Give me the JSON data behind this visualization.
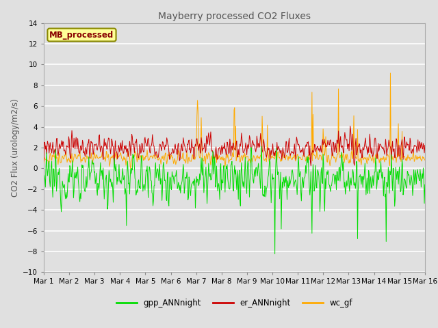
{
  "title": "Mayberry processed CO2 Fluxes",
  "ylabel": "CO2 Flux (urology/m2/s)",
  "legend_label": "MB_processed",
  "series": [
    "gpp_ANNnight",
    "er_ANNnight",
    "wc_gf"
  ],
  "colors": [
    "#00dd00",
    "#cc0000",
    "#ffaa00"
  ],
  "ylim": [
    -10,
    14
  ],
  "yticks": [
    -10,
    -8,
    -6,
    -4,
    -2,
    0,
    2,
    4,
    6,
    8,
    10,
    12,
    14
  ],
  "n_points": 720,
  "x_start": 0,
  "x_end": 15,
  "xtick_positions": [
    0,
    1,
    2,
    3,
    4,
    5,
    6,
    7,
    8,
    9,
    10,
    11,
    12,
    13,
    14,
    15
  ],
  "xtick_labels": [
    "Mar 1",
    "Mar 2",
    "Mar 3",
    "Mar 4",
    "Mar 5",
    "Mar 6",
    "Mar 7",
    "Mar 8",
    "Mar 9",
    "Mar 10",
    "Mar 11",
    "Mar 12",
    "Mar 13",
    "Mar 14",
    "Mar 15",
    "Mar 16"
  ],
  "background_color": "#e0e0e0",
  "axes_facecolor": "#e0e0e0",
  "grid_color": "#ffffff",
  "legend_box_color": "#ffff99",
  "legend_text_color": "#880000",
  "legend_box_edgecolor": "#888800",
  "title_color": "#555555",
  "label_color": "#555555"
}
